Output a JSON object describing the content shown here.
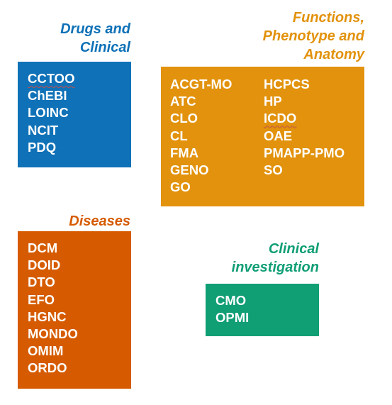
{
  "colors": {
    "drugs": "#0f71b7",
    "functions": "#e2920c",
    "diseases": "#d65b00",
    "clinical": "#109e75",
    "squiggle": "#c0504d"
  },
  "groups": {
    "drugs": {
      "title": "Drugs and\nClinical",
      "items": [
        "CCTOO",
        "ChEBI",
        "LOINC",
        "NCIT",
        "PDQ"
      ]
    },
    "functions": {
      "title": "Functions,\nPhenotype and\nAnatomy",
      "items_col1": [
        "ACGT-MO",
        "ATC",
        "CLO",
        "CL",
        "FMA",
        "GENO",
        "GO"
      ],
      "items_col2": [
        "HCPCS",
        "HP",
        "ICDO",
        "OAE",
        "PMAPP-PMO",
        "SO"
      ]
    },
    "diseases": {
      "title": "Diseases",
      "items": [
        "DCM",
        "DOID",
        "DTO",
        "EFO",
        "HGNC",
        "MONDO",
        "OMIM",
        "ORDO"
      ]
    },
    "clinical": {
      "title": "Clinical\ninvestigation",
      "items": [
        "CMO",
        "OPMI"
      ]
    }
  }
}
